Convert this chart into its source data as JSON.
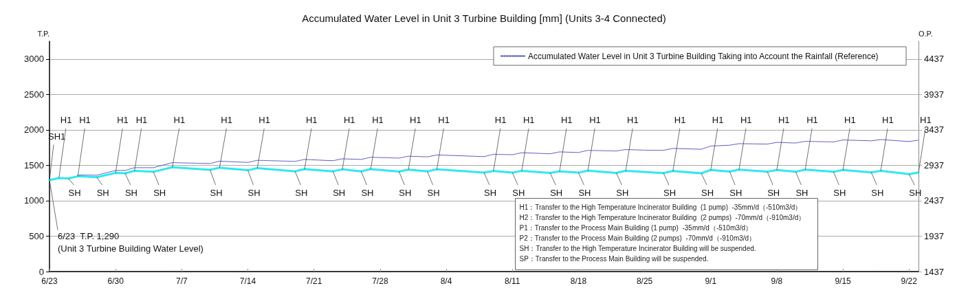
{
  "chart_data": {
    "type": "line",
    "title": "Accumulated Water Level in Unit 3 Turbine Building [mm] (Units 3-4 Connected)",
    "ylabel": "T.P.",
    "y2label": "O.P.",
    "series": [
      {
        "color": "#2ee8f2",
        "x": [
          "--06-23",
          "--06-24",
          "--06-25",
          "--06-26",
          "--06-28",
          "--06-30",
          "--07-01",
          "--07-02",
          "--07-04",
          "--07-06",
          "--07-10",
          "--07-11",
          "--07-14",
          "--07-15",
          "--07-19",
          "--07-20",
          "--07-23",
          "--07-24",
          "--07-26",
          "--07-27",
          "--07-30",
          "--07-31",
          "--08-02",
          "--08-03",
          "--08-08",
          "--08-09",
          "--08-11",
          "--08-12",
          "--08-15",
          "--08-16",
          "--08-18",
          "--08-19",
          "--08-22",
          "--08-23",
          "--08-27",
          "--08-28",
          "--08-31",
          "--09-01",
          "--09-03",
          "--09-04",
          "--09-07",
          "--09-08",
          "--09-10",
          "--09-11",
          "--09-14",
          "--09-15",
          "--09-18",
          "--09-19",
          "--09-22",
          "--09-23"
        ],
        "values": [
          1290,
          1320,
          1314,
          1345,
          1332,
          1393,
          1387,
          1421,
          1408,
          1473,
          1436,
          1466,
          1430,
          1460,
          1415,
          1445,
          1415,
          1442,
          1415,
          1445,
          1412,
          1439,
          1415,
          1442,
          1396,
          1418,
          1396,
          1421,
          1393,
          1415,
          1396,
          1424,
          1393,
          1421,
          1390,
          1418,
          1387,
          1433,
          1412,
          1439,
          1408,
          1433,
          1408,
          1439,
          1408,
          1433,
          1399,
          1421,
          1375,
          1396
        ]
      },
      {
        "name": "Accumulated Water Level in Unit 3 Turbine Building Taking into Account the Rainfall (Reference)",
        "color": "#4848b8",
        "line_style": "dotted",
        "x": [
          "--06-26",
          "--06-28",
          "--06-30",
          "--07-01",
          "--07-02",
          "--07-04",
          "--07-06",
          "--07-10",
          "--07-11",
          "--07-14",
          "--07-15",
          "--07-19",
          "--07-20",
          "--07-23",
          "--07-24",
          "--07-26",
          "--07-27",
          "--07-30",
          "--07-31",
          "--08-02",
          "--08-03",
          "--08-08",
          "--08-09",
          "--08-11",
          "--08-12",
          "--08-15",
          "--08-16",
          "--08-18",
          "--08-19",
          "--08-22",
          "--08-23",
          "--08-25",
          "--08-27",
          "--08-28",
          "--08-31",
          "--09-01",
          "--09-03",
          "--09-04",
          "--09-07",
          "--09-08",
          "--09-10",
          "--09-11",
          "--09-14",
          "--09-15",
          "--09-18",
          "--09-19",
          "--09-22",
          "--09-23"
        ],
        "values": [
          1363,
          1360,
          1427,
          1427,
          1466,
          1466,
          1537,
          1524,
          1558,
          1540,
          1570,
          1555,
          1582,
          1564,
          1591,
          1582,
          1613,
          1601,
          1628,
          1619,
          1646,
          1622,
          1655,
          1649,
          1677,
          1662,
          1689,
          1680,
          1710,
          1701,
          1722,
          1713,
          1710,
          1738,
          1726,
          1771,
          1783,
          1805,
          1799,
          1823,
          1814,
          1838,
          1829,
          1857,
          1845,
          1863,
          1835,
          1854
        ]
      }
    ],
    "xlim": [
      "--06-23",
      "--09-23"
    ],
    "xticks": [
      {
        "value": "--06-23",
        "label": "6/23"
      },
      {
        "value": "--06-30",
        "label": "6/30"
      },
      {
        "value": "--07-07",
        "label": "7/7"
      },
      {
        "value": "--07-14",
        "label": "7/14"
      },
      {
        "value": "--07-21",
        "label": "7/21"
      },
      {
        "value": "--07-28",
        "label": "7/28"
      },
      {
        "value": "--08-04",
        "label": "8/4"
      },
      {
        "value": "--08-11",
        "label": "8/11"
      },
      {
        "value": "--08-18",
        "label": "8/18"
      },
      {
        "value": "--08-25",
        "label": "8/25"
      },
      {
        "value": "--09-01",
        "label": "9/1"
      },
      {
        "value": "--09-08",
        "label": "9/8"
      },
      {
        "value": "--09-15",
        "label": "9/15"
      },
      {
        "value": "--09-22",
        "label": "9/22"
      }
    ],
    "ylim": [
      0,
      3250
    ],
    "yticks": [
      0,
      500,
      1000,
      1500,
      2000,
      2500,
      3000
    ],
    "y2lim": [
      1437,
      4687
    ],
    "y2ticks": [
      1437,
      1937,
      2437,
      2937,
      3437,
      3937,
      4437
    ],
    "grid": "y",
    "legend": "top right",
    "marker": "none",
    "line_style": "solid",
    "annotations": [
      {
        "text": "SH1",
        "x": "--06-23",
        "y": 1290
      },
      {
        "text": "6/23  T.P. 1,290\n(Unit 3 Turbine Building Water Level)",
        "x": "--06-23",
        "y": 1290
      },
      {
        "text": "H1",
        "x": "--06-24",
        "y": 1320
      },
      {
        "text": "SH",
        "x": "--06-25",
        "y": 1314
      },
      {
        "text": "H1",
        "x": "--06-26",
        "y": 1345
      },
      {
        "text": "SH",
        "x": "--06-28",
        "y": 1332
      },
      {
        "text": "H1",
        "x": "--06-30",
        "y": 1393
      },
      {
        "text": "SH",
        "x": "--07-01",
        "y": 1387
      },
      {
        "text": "H1",
        "x": "--07-02",
        "y": 1421
      },
      {
        "text": "SH",
        "x": "--07-04",
        "y": 1408
      },
      {
        "text": "H1",
        "x": "--07-06",
        "y": 1473
      },
      {
        "text": "SH",
        "x": "--07-10",
        "y": 1436
      },
      {
        "text": "H1",
        "x": "--07-11",
        "y": 1466
      },
      {
        "text": "SH",
        "x": "--07-14",
        "y": 1430
      },
      {
        "text": "H1",
        "x": "--07-15",
        "y": 1460
      },
      {
        "text": "SH",
        "x": "--07-19",
        "y": 1415
      },
      {
        "text": "H1",
        "x": "--07-20",
        "y": 1445
      },
      {
        "text": "SH",
        "x": "--07-23",
        "y": 1415
      },
      {
        "text": "H1",
        "x": "--07-24",
        "y": 1442
      },
      {
        "text": "SH",
        "x": "--07-26",
        "y": 1415
      },
      {
        "text": "H1",
        "x": "--07-27",
        "y": 1445
      },
      {
        "text": "SH",
        "x": "--07-30",
        "y": 1412
      },
      {
        "text": "H1",
        "x": "--07-31",
        "y": 1439
      },
      {
        "text": "SH",
        "x": "--08-02",
        "y": 1415
      },
      {
        "text": "H1",
        "x": "--08-03",
        "y": 1442
      },
      {
        "text": "SH",
        "x": "--08-08",
        "y": 1396
      },
      {
        "text": "H1",
        "x": "--08-09",
        "y": 1418
      },
      {
        "text": "SH",
        "x": "--08-11",
        "y": 1396
      },
      {
        "text": "H1",
        "x": "--08-12",
        "y": 1421
      },
      {
        "text": "SH",
        "x": "--08-15",
        "y": 1393
      },
      {
        "text": "H1",
        "x": "--08-16",
        "y": 1415
      },
      {
        "text": "SH",
        "x": "--08-18",
        "y": 1396
      },
      {
        "text": "H1",
        "x": "--08-19",
        "y": 1424
      },
      {
        "text": "SH",
        "x": "--08-22",
        "y": 1393
      },
      {
        "text": "H1",
        "x": "--08-23",
        "y": 1421
      },
      {
        "text": "SH",
        "x": "--08-27",
        "y": 1390
      },
      {
        "text": "H1",
        "x": "--08-28",
        "y": 1418
      },
      {
        "text": "SH",
        "x": "--08-31",
        "y": 1387
      },
      {
        "text": "H1",
        "x": "--09-01",
        "y": 1433
      },
      {
        "text": "SH",
        "x": "--09-03",
        "y": 1412
      },
      {
        "text": "H1",
        "x": "--09-04",
        "y": 1439
      },
      {
        "text": "SH",
        "x": "--09-07",
        "y": 1408
      },
      {
        "text": "H1",
        "x": "--09-08",
        "y": 1433
      },
      {
        "text": "SH",
        "x": "--09-10",
        "y": 1408
      },
      {
        "text": "H1",
        "x": "--09-11",
        "y": 1439
      },
      {
        "text": "SH",
        "x": "--09-14",
        "y": 1408
      },
      {
        "text": "H1",
        "x": "--09-15",
        "y": 1433
      },
      {
        "text": "SH",
        "x": "--09-18",
        "y": 1399
      },
      {
        "text": "H1",
        "x": "--09-19",
        "y": 1421
      },
      {
        "text": "SH",
        "x": "--09-22",
        "y": 1375
      },
      {
        "text": "H1",
        "x": "--09-23",
        "y": 1396
      },
      "H1：Transfer to the High Temperature Incinerator Building  (1 pump)  -35mm/d（-510m3/d）",
      "H2：Transfer to the High Temperature Incinerator Building  (2 pumps)  -70mm/d（-910m3/d）",
      "P1：Transfer to the Process Main Building (1 pump)  -35mm/d（-510m3/d）",
      "P2：Transfer to the Process Main Building (2 pumps)  -70mm/d（-910m3/d）",
      "SH：Transfer to the High Temperature Incinerator Building will be suspended.",
      "SP：Transfer to the Process Main Building will be suspended."
    ]
  }
}
